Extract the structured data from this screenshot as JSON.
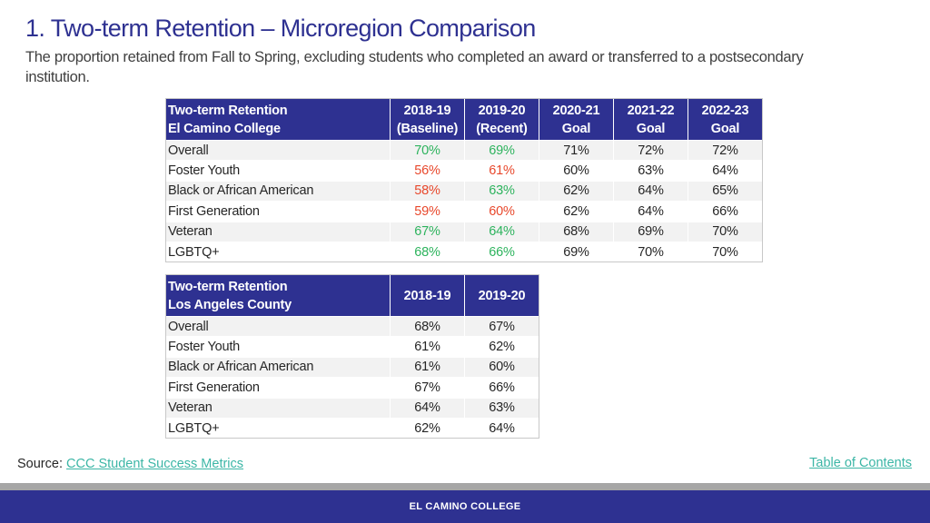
{
  "page": {
    "title": "1. Two-term Retention – Microregion Comparison",
    "subtitle": "The proportion retained from Fall to Spring, excluding students who completed an award or transferred to a postsecondary institution."
  },
  "colors": {
    "header_bg": "#2e3191",
    "green": "#2db35d",
    "red": "#e8482c",
    "link": "#3cb6a6"
  },
  "table_ecc": {
    "header_line1": "Two-term Retention",
    "header_line2": "El Camino College",
    "columns": [
      {
        "line1": "2018-19",
        "line2": "(Baseline)"
      },
      {
        "line1": "2019-20",
        "line2": "(Recent)"
      },
      {
        "line1": "2020-21",
        "line2": "Goal"
      },
      {
        "line1": "2021-22",
        "line2": "Goal"
      },
      {
        "line1": "2022-23",
        "line2": "Goal"
      }
    ],
    "rows": [
      {
        "label": "Overall",
        "values": [
          "70%",
          "69%",
          "71%",
          "72%",
          "72%"
        ],
        "status": [
          "green",
          "green",
          "",
          "",
          ""
        ]
      },
      {
        "label": "Foster Youth",
        "values": [
          "56%",
          "61%",
          "60%",
          "63%",
          "64%"
        ],
        "status": [
          "red",
          "red",
          "",
          "",
          ""
        ]
      },
      {
        "label": "Black or African American",
        "values": [
          "58%",
          "63%",
          "62%",
          "64%",
          "65%"
        ],
        "status": [
          "red",
          "green",
          "",
          "",
          ""
        ]
      },
      {
        "label": "First Generation",
        "values": [
          "59%",
          "60%",
          "62%",
          "64%",
          "66%"
        ],
        "status": [
          "red",
          "red",
          "",
          "",
          ""
        ]
      },
      {
        "label": "Veteran",
        "values": [
          "67%",
          "64%",
          "68%",
          "69%",
          "70%"
        ],
        "status": [
          "green",
          "green",
          "",
          "",
          ""
        ]
      },
      {
        "label": "LGBTQ+",
        "values": [
          "68%",
          "66%",
          "69%",
          "70%",
          "70%"
        ],
        "status": [
          "green",
          "green",
          "",
          "",
          ""
        ]
      }
    ]
  },
  "table_lac": {
    "header_line1": "Two-term Retention",
    "header_line2": "Los Angeles County",
    "columns": [
      "2018-19",
      "2019-20"
    ],
    "rows": [
      {
        "label": "Overall",
        "values": [
          "68%",
          "67%"
        ]
      },
      {
        "label": "Foster Youth",
        "values": [
          "61%",
          "62%"
        ]
      },
      {
        "label": "Black or African American",
        "values": [
          "61%",
          "60%"
        ]
      },
      {
        "label": "First Generation",
        "values": [
          "67%",
          "66%"
        ]
      },
      {
        "label": "Veteran",
        "values": [
          "64%",
          "63%"
        ]
      },
      {
        "label": "LGBTQ+",
        "values": [
          "62%",
          "64%"
        ]
      }
    ]
  },
  "source": {
    "label": "Source:",
    "link_text": "CCC Student Success Metrics"
  },
  "toc_link": "Table of Contents",
  "footer": {
    "text": "EL CAMINO COLLEGE"
  }
}
